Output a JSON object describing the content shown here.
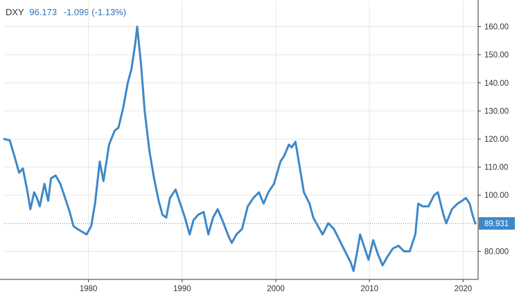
{
  "header": {
    "symbol": "DXY",
    "value": "96.173",
    "change": "-1.099 (-1.13%)"
  },
  "colors": {
    "line": "#3d88c9",
    "grid": "#e6e6e6",
    "axis": "#333333",
    "label_bg": "#3d88c9",
    "text_accent": "#2e74b5"
  },
  "chart_data": {
    "type": "line",
    "title": "",
    "xlabel": "",
    "ylabel": "",
    "xlim": [
      1971.0,
      2021.6
    ],
    "ylim": [
      70,
      169
    ],
    "x_ticks": [
      "1980",
      "1990",
      "2000",
      "2010",
      "2020"
    ],
    "y_ticks": [
      "80.000",
      "100.00",
      "110.00",
      "120.00",
      "130.00",
      "140.00",
      "150.00",
      "160.00"
    ],
    "grid": true,
    "legend": "none",
    "last_value_label": "89.931",
    "last_value": 89.931,
    "series": [
      {
        "name": "DXY",
        "x": [
          1971.0,
          1971.6,
          1972.0,
          1972.6,
          1973.0,
          1973.5,
          1973.8,
          1974.2,
          1974.5,
          1974.8,
          1975.3,
          1975.7,
          1976.0,
          1976.5,
          1977.0,
          1977.5,
          1978.0,
          1978.4,
          1978.8,
          1979.3,
          1979.8,
          1980.3,
          1980.7,
          1981.2,
          1981.6,
          1982.2,
          1982.8,
          1983.2,
          1983.7,
          1984.2,
          1984.6,
          1985.0,
          1985.2,
          1985.6,
          1986.0,
          1986.5,
          1987.0,
          1987.5,
          1987.9,
          1988.3,
          1988.7,
          1989.3,
          1989.8,
          1990.3,
          1990.8,
          1991.2,
          1991.7,
          1992.3,
          1992.8,
          1993.3,
          1993.8,
          1994.3,
          1995.0,
          1995.3,
          1995.8,
          1996.4,
          1997.0,
          1997.6,
          1998.2,
          1998.7,
          1999.2,
          1999.8,
          2000.5,
          2000.9,
          2001.4,
          2001.7,
          2002.1,
          2002.6,
          2003.0,
          2003.6,
          2004.0,
          2004.5,
          2005.0,
          2005.6,
          2006.2,
          2006.8,
          2007.4,
          2008.0,
          2008.3,
          2008.7,
          2009.0,
          2009.4,
          2009.9,
          2010.4,
          2010.9,
          2011.4,
          2011.9,
          2012.5,
          2013.1,
          2013.7,
          2014.3,
          2014.9,
          2015.2,
          2015.7,
          2016.3,
          2016.9,
          2017.3,
          2017.9,
          2018.2,
          2018.8,
          2019.4,
          2019.9,
          2020.3,
          2020.7,
          2021.0,
          2021.3
        ],
        "y": [
          120.0,
          119.5,
          115.0,
          108.0,
          109.5,
          101.0,
          95.0,
          101.0,
          99.0,
          96.0,
          104.0,
          98.0,
          106.0,
          107.0,
          104.0,
          99.0,
          94.0,
          89.0,
          88.0,
          87.0,
          86.0,
          89.0,
          97.0,
          112.0,
          105.0,
          118.0,
          123.0,
          124.0,
          131.0,
          140.0,
          145.0,
          154.0,
          160.0,
          147.0,
          130.0,
          116.0,
          106.0,
          98.0,
          93.0,
          92.0,
          99.0,
          102.0,
          97.0,
          92.0,
          86.0,
          91.0,
          93.0,
          94.0,
          86.0,
          92.0,
          95.0,
          91.0,
          85.0,
          83.0,
          86.0,
          88.0,
          96.0,
          99.0,
          101.0,
          97.0,
          101.0,
          104.0,
          112.0,
          114.0,
          118.0,
          117.0,
          119.0,
          109.0,
          101.0,
          97.0,
          92.0,
          89.0,
          86.0,
          90.0,
          88.0,
          84.0,
          80.0,
          76.0,
          73.0,
          80.0,
          86.0,
          82.0,
          77.0,
          84.0,
          79.0,
          75.0,
          78.0,
          81.0,
          82.0,
          80.0,
          80.0,
          86.0,
          97.0,
          96.0,
          96.0,
          100.0,
          101.0,
          93.0,
          90.0,
          95.0,
          97.0,
          98.0,
          99.0,
          97.0,
          93.0,
          89.931
        ]
      }
    ]
  }
}
